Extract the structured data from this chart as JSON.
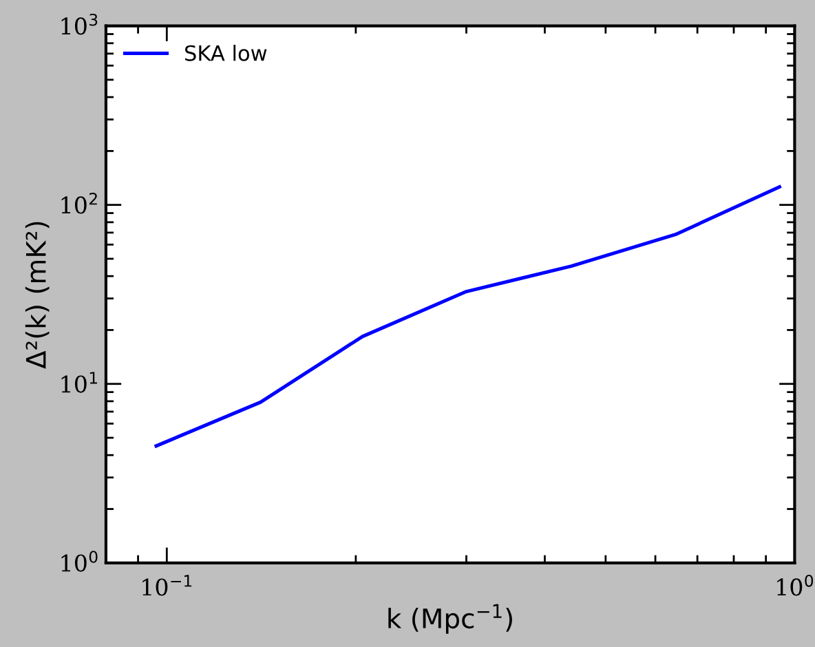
{
  "chart_data": {
    "type": "line",
    "xlabel": "k (Mpc$^{−1}$)",
    "ylabel": "Δ²(k) (mK²)",
    "log": "xy",
    "legend": "top left",
    "grid": false,
    "x": [
      0.0962,
      0.141,
      0.205,
      0.3,
      0.441,
      0.646,
      0.946
    ],
    "series": [
      {
        "name": "SKA low",
        "color": "#0000ff",
        "values": [
          4.5,
          7.9,
          18.4,
          32.8,
          45.5,
          68.3,
          126
        ]
      }
    ],
    "xlim": [
      0.08,
      1
    ],
    "ylim": [
      1,
      1000
    ],
    "xticks": [
      {
        "value": 0.1,
        "label": "10$^{−1}$"
      },
      {
        "value": 1,
        "label": "10$^{0}$"
      }
    ],
    "yticks": [
      {
        "value": 1,
        "label": "10$^{0}$"
      },
      {
        "value": 10,
        "label": "10$^{1}$"
      },
      {
        "value": 100,
        "label": "10$^{2}$"
      },
      {
        "value": 1000,
        "label": "10$^{3}$"
      }
    ]
  }
}
